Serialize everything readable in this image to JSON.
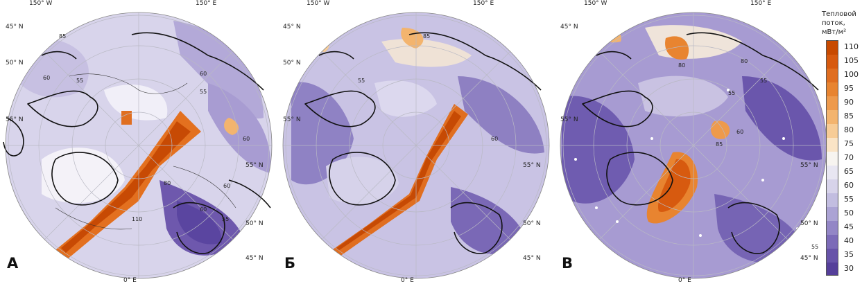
{
  "panels": [
    {
      "letter": "А",
      "lon_left": "150° W",
      "lon_right": "150° E",
      "lon_bottom": "0° E",
      "lat_labels": [
        "45° N",
        "50° N",
        "55° N",
        "55° N",
        "50° N",
        "45° N"
      ],
      "contours": [
        "85",
        "60",
        "55",
        "60",
        "60",
        "60",
        "55",
        "55",
        "80",
        "60",
        "110"
      ]
    },
    {
      "letter": "Б",
      "lon_left": "150° W",
      "lon_right": "150° E",
      "lon_bottom": "0° E",
      "lat_labels": [
        "45° N",
        "50° N",
        "55° N",
        "55° N",
        "50° N",
        "45° N"
      ],
      "contours": [
        "85",
        "60",
        "55"
      ]
    },
    {
      "letter": "В",
      "lon_left": "150° W",
      "lon_right": "150° E",
      "lon_bottom": "0° E",
      "lat_labels": [
        "45° N",
        "55° N",
        "55° N",
        "50° N",
        "45° N"
      ],
      "contours": [
        "80",
        "80",
        "55",
        "55",
        "60",
        "85",
        "55"
      ]
    }
  ],
  "legend": {
    "title_line1": "Тепловой",
    "title_line2": "поток,",
    "title_line3": "мВт/м²",
    "ticks": [
      "110",
      "105",
      "100",
      "95",
      "90",
      "85",
      "80",
      "75",
      "70",
      "65",
      "60",
      "55",
      "50",
      "45",
      "40",
      "35",
      "30"
    ],
    "colors": [
      "#c84a00",
      "#d75a0f",
      "#e06e20",
      "#e88430",
      "#ee9a4c",
      "#f3b46e",
      "#f7cc96",
      "#fae4c6",
      "#f7f4f0",
      "#e8e6f2",
      "#d7d3ea",
      "#c2bde0",
      "#aba3d4",
      "#9386c6",
      "#7c6bb8",
      "#6753a9",
      "#553f9a"
    ],
    "colors_meaning": "color scale from 110 (top, orange) to 30 (bottom, purple)"
  }
}
